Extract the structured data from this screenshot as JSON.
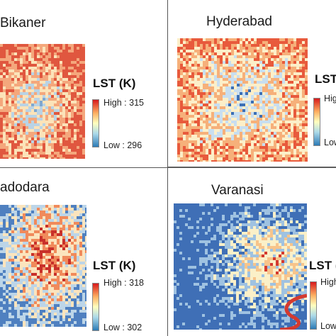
{
  "panels": [
    {
      "name": "bikaner",
      "title": "Bikaner",
      "legend_title": "LST (K)",
      "high_label": "High : 315",
      "low_label": "Low : 296",
      "colors": {
        "hot": "#e0573f",
        "warm": "#f4a77c",
        "mid": "#fbe3b9",
        "cool": "#b9d3e5",
        "cold": "#7fa7cf"
      }
    },
    {
      "name": "hyderabad",
      "title": "Hyderabad",
      "legend_title": "LST",
      "high_label": "High",
      "low_label": "Low",
      "colors": {
        "hot": "#e85a3c",
        "warm": "#f6b07a",
        "mid": "#fcefc9",
        "cool": "#c8def0",
        "cold": "#3c6fb5"
      }
    },
    {
      "name": "vadodara",
      "title": "adodara",
      "legend_title": "LST (K)",
      "high_label": "High : 318",
      "low_label": "Low : 302",
      "colors": {
        "hot": "#c8302a",
        "warm": "#f08a5b",
        "mid": "#fbe4bd",
        "cool": "#bcd5e8",
        "cold": "#4f80c0"
      }
    },
    {
      "name": "varanasi",
      "title": "Varanasi",
      "legend_title": "LST (",
      "high_label": "High",
      "low_label": "Low",
      "colors": {
        "hot": "#d43a2f",
        "warm": "#f7c48b",
        "mid": "#fbf0c8",
        "cool": "#9fc2e1",
        "cold": "#3f6fb6"
      }
    }
  ]
}
